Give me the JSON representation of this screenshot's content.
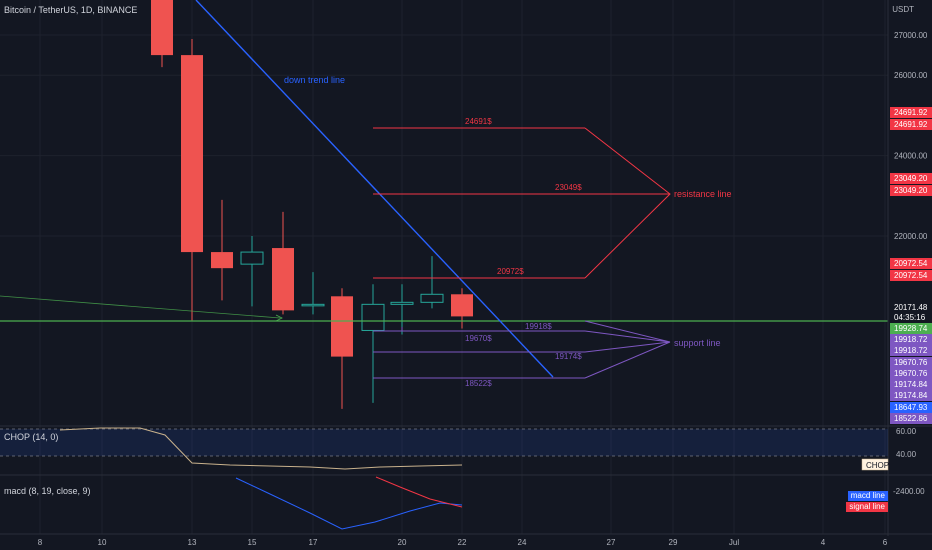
{
  "header": {
    "title": "Bitcoin / TetherUS, 1D, BINANCE",
    "currency": "USDT"
  },
  "price_axis": {
    "ticks": [
      "27000.00",
      "26000.00",
      "24000.00",
      "22000.00"
    ],
    "tags": [
      {
        "text": "24691.92",
        "kind": "red"
      },
      {
        "text": "24691.92",
        "kind": "red"
      },
      {
        "text": "23049.20",
        "kind": "red"
      },
      {
        "text": "23049.20",
        "kind": "red"
      },
      {
        "text": "20972.54",
        "kind": "red"
      },
      {
        "text": "20972.54",
        "kind": "red"
      },
      {
        "text": "20171.48",
        "kind": "dark"
      },
      {
        "text": "04:35:16",
        "kind": "dark"
      },
      {
        "text": "19928.74",
        "kind": "green"
      },
      {
        "text": "19918.72",
        "kind": "purple"
      },
      {
        "text": "19918.72",
        "kind": "purple"
      },
      {
        "text": "19670.76",
        "kind": "purple"
      },
      {
        "text": "19670.76",
        "kind": "purple"
      },
      {
        "text": "19174.84",
        "kind": "purple"
      },
      {
        "text": "19174.84",
        "kind": "purple"
      },
      {
        "text": "18647.93",
        "kind": "blue"
      },
      {
        "text": "18522.86",
        "kind": "purple"
      }
    ]
  },
  "time_axis": {
    "labels": [
      "8",
      "10",
      "13",
      "15",
      "17",
      "20",
      "22",
      "24",
      "27",
      "29",
      "Jul",
      "4",
      "6"
    ]
  },
  "annotations": {
    "trend_label": "down trend line",
    "resistance_label": "resistance line",
    "support_label": "support line",
    "levels": [
      {
        "text": "24691$",
        "kind": "resistance"
      },
      {
        "text": "23049$",
        "kind": "resistance"
      },
      {
        "text": "20972$",
        "kind": "resistance"
      },
      {
        "text": "19918$",
        "kind": "support"
      },
      {
        "text": "19670$",
        "kind": "support"
      },
      {
        "text": "19174$",
        "kind": "support"
      },
      {
        "text": "18522$",
        "kind": "support"
      }
    ]
  },
  "chop": {
    "label": "CHOP (14, 0)",
    "tick_top": "60.00",
    "tick_bottom": "40.00",
    "badge": "CHOP"
  },
  "macd": {
    "label": "macd (8, 19, close, 9)",
    "tick": "-2400.00",
    "legend_macd": "macd line",
    "legend_signal": "signal line"
  },
  "colors": {
    "background": "#131722",
    "up": "#26a69a",
    "down": "#ef5350",
    "trend": "#2962ff",
    "resistance": "#f23645",
    "support": "#7e57c2",
    "hline": "#4caf50"
  },
  "chart_data": {
    "type": "candlestick",
    "symbol": "BTCUSDT",
    "interval": "1D",
    "x": [
      "12",
      "13",
      "14",
      "15",
      "16",
      "17",
      "18",
      "19",
      "20",
      "21",
      "22"
    ],
    "open": [
      28400,
      26500,
      21600,
      21300,
      21700,
      20300,
      20500,
      19650,
      20300,
      20350,
      20550
    ],
    "high": [
      28500,
      26900,
      22900,
      22000,
      22600,
      21100,
      20700,
      20800,
      20800,
      21500,
      20700
    ],
    "low": [
      26200,
      19900,
      20400,
      20250,
      20050,
      20050,
      17700,
      17850,
      19550,
      20200,
      19700
    ],
    "close": [
      26500,
      21600,
      21200,
      21600,
      20150,
      20300,
      19000,
      20300,
      20350,
      20550,
      20000
    ],
    "ylim": [
      18400,
      27600
    ]
  }
}
